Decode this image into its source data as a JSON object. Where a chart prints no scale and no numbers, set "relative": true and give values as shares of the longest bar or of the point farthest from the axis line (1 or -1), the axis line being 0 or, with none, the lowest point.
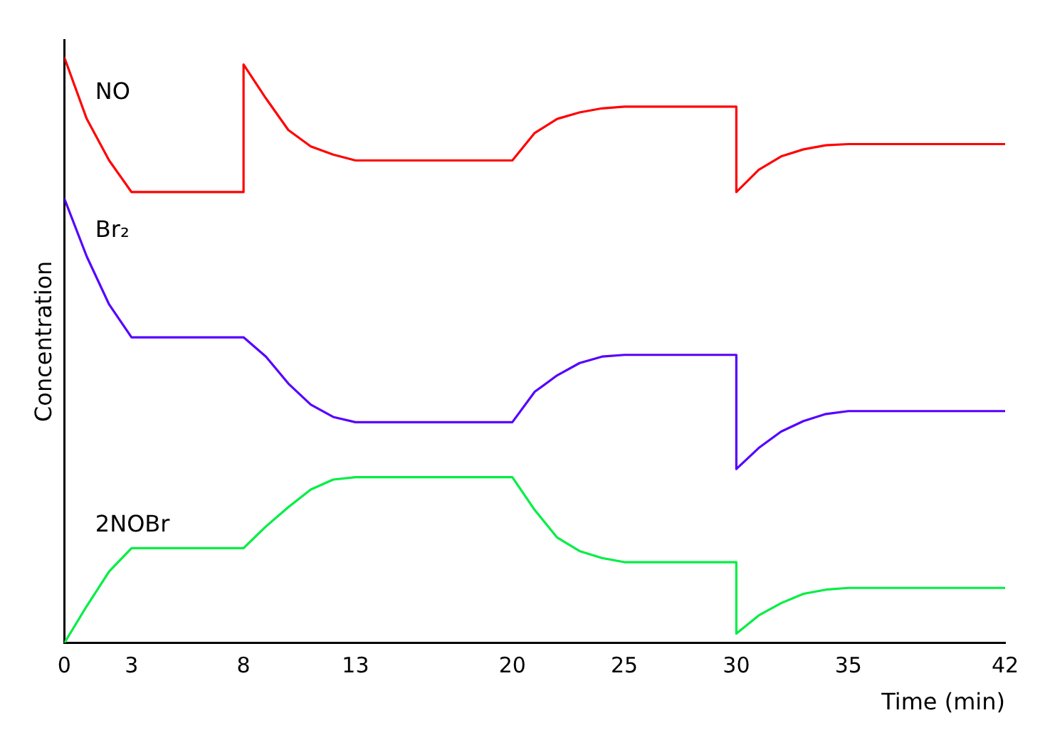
{
  "chart_data": {
    "type": "line",
    "xlabel": "Time (min)",
    "ylabel": "Concentration",
    "relative": true,
    "xlim": [
      0,
      42
    ],
    "xticks": [
      0,
      3,
      8,
      13,
      20,
      25,
      30,
      35,
      42
    ],
    "grid": false,
    "legend": false,
    "marker": "none",
    "line_style": "solid",
    "series": [
      {
        "name": "NO",
        "color": "#ff0000",
        "x": [
          0,
          1,
          2,
          3,
          8,
          8,
          9,
          10,
          11,
          12,
          13,
          20,
          21,
          22,
          23,
          24,
          25,
          30,
          30,
          31,
          32,
          33,
          34,
          35,
          42
        ],
        "values": [
          1.0,
          0.895,
          0.824,
          0.77,
          0.77,
          0.988,
          0.93,
          0.876,
          0.848,
          0.834,
          0.824,
          0.824,
          0.871,
          0.895,
          0.906,
          0.913,
          0.916,
          0.916,
          0.77,
          0.808,
          0.831,
          0.843,
          0.85,
          0.852,
          0.852
        ]
      },
      {
        "name": "Br₂",
        "color": "#5500ff",
        "x": [
          0,
          1,
          2,
          3,
          8,
          9,
          10,
          11,
          12,
          13,
          20,
          21,
          22,
          23,
          24,
          25,
          30,
          30,
          31,
          32,
          33,
          34,
          35,
          42
        ],
        "values": [
          0.759,
          0.66,
          0.578,
          0.522,
          0.522,
          0.489,
          0.443,
          0.407,
          0.386,
          0.377,
          0.377,
          0.429,
          0.457,
          0.478,
          0.489,
          0.492,
          0.492,
          0.297,
          0.333,
          0.361,
          0.379,
          0.391,
          0.396,
          0.396
        ]
      },
      {
        "name": "2NOBr",
        "color": "#00ee44",
        "x": [
          0,
          1,
          2,
          3,
          8,
          9,
          10,
          11,
          12,
          13,
          20,
          21,
          22,
          23,
          24,
          25,
          30,
          30,
          31,
          32,
          33,
          34,
          35,
          42
        ],
        "values": [
          0,
          0.063,
          0.122,
          0.162,
          0.162,
          0.199,
          0.232,
          0.262,
          0.279,
          0.283,
          0.283,
          0.227,
          0.18,
          0.157,
          0.145,
          0.138,
          0.138,
          0.016,
          0.047,
          0.068,
          0.084,
          0.091,
          0.094,
          0.094
        ]
      }
    ]
  }
}
